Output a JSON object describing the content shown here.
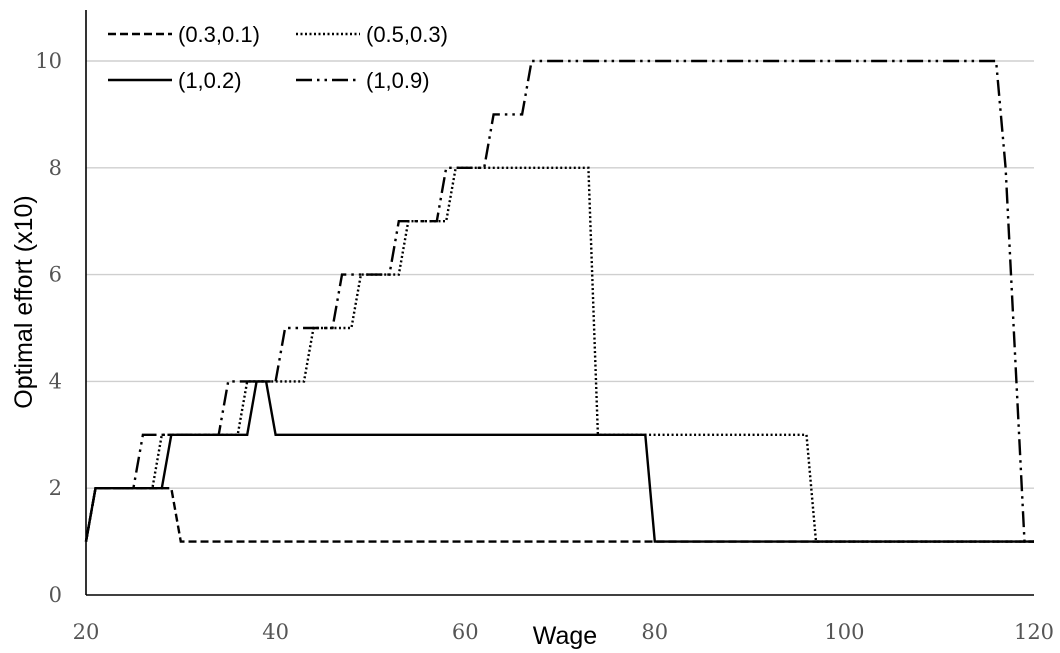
{
  "chart_data": {
    "type": "line",
    "xlabel": "Wage",
    "ylabel": "Optimal effort (x10)",
    "xlim": [
      20,
      120
    ],
    "ylim": [
      0,
      10
    ],
    "xticks": [
      "20",
      "40",
      "60",
      "80",
      "100",
      "120"
    ],
    "yticks": [
      "0",
      "2",
      "4",
      "6",
      "8",
      "10"
    ],
    "grid": "horizontal",
    "legend_position": "top-left",
    "series": [
      {
        "name": "(0.3,0.1)",
        "style": "dashed",
        "x": [
          20,
          21,
          29,
          30,
          120
        ],
        "y": [
          1,
          2,
          2,
          1,
          1
        ]
      },
      {
        "name": "(0.5,0.3)",
        "style": "dotted",
        "x": [
          20,
          21,
          27,
          28,
          36,
          37,
          43,
          44,
          48,
          49,
          53,
          54,
          58,
          59,
          73,
          74,
          96,
          97,
          120
        ],
        "y": [
          1,
          2,
          2,
          3,
          3,
          4,
          4,
          5,
          5,
          6,
          6,
          7,
          7,
          8,
          8,
          3,
          3,
          1,
          1
        ]
      },
      {
        "name": "(1,0.2)",
        "style": "solid",
        "x": [
          20,
          21,
          28,
          29,
          37,
          38,
          39,
          40,
          79,
          80,
          120
        ],
        "y": [
          1,
          2,
          2,
          3,
          3,
          4,
          4,
          3,
          3,
          1,
          1
        ]
      },
      {
        "name": "(1,0.9)",
        "style": "dash-dot-dot",
        "x": [
          20,
          21,
          25,
          26,
          34,
          35,
          40,
          41,
          46,
          47,
          52,
          53,
          57,
          58,
          62,
          63,
          66,
          67,
          116,
          117,
          119,
          120
        ],
        "y": [
          1,
          2,
          2,
          3,
          3,
          4,
          4,
          5,
          5,
          6,
          6,
          7,
          7,
          8,
          8,
          9,
          9,
          10,
          10,
          8,
          1,
          1
        ]
      }
    ]
  }
}
